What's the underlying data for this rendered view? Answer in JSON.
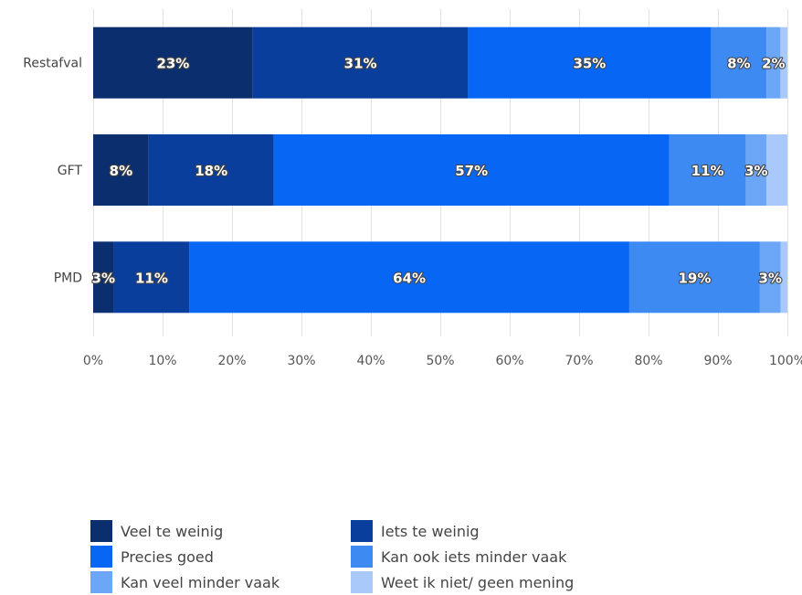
{
  "chart_data": {
    "type": "bar",
    "orientation": "horizontal",
    "stacked": true,
    "categories": [
      "Restafval",
      "GFT",
      "PMD"
    ],
    "series": [
      {
        "name": "Veel te weinig",
        "color": "#0b2f6e",
        "values": [
          23,
          8,
          3
        ],
        "labels": [
          "23%",
          "8%",
          "3%"
        ]
      },
      {
        "name": "Iets te weinig",
        "color": "#0a3e9c",
        "values": [
          31,
          18,
          11
        ],
        "labels": [
          "31%",
          "18%",
          "11%"
        ]
      },
      {
        "name": "Precies goed",
        "color": "#0866f5",
        "values": [
          35,
          57,
          64
        ],
        "labels": [
          "35%",
          "57%",
          "64%"
        ]
      },
      {
        "name": "Kan ook iets minder vaak",
        "color": "#3d8af3",
        "values": [
          8,
          11,
          19
        ],
        "labels": [
          "8%",
          "11%",
          "19%"
        ]
      },
      {
        "name": "Kan veel minder vaak",
        "color": "#6ba6f7",
        "values": [
          2,
          3,
          3
        ],
        "labels": [
          "2%",
          "3%",
          "3%"
        ]
      },
      {
        "name": "Weet ik niet/ geen mening",
        "color": "#a9c9fb",
        "values": [
          1,
          3,
          1
        ],
        "labels": [
          "",
          "",
          ""
        ]
      }
    ],
    "xticks": [
      "0%",
      "10%",
      "20%",
      "30%",
      "40%",
      "50%",
      "60%",
      "70%",
      "80%",
      "90%",
      "100%"
    ],
    "xlim": [
      0,
      100
    ],
    "grid": true,
    "legend": "bottom"
  }
}
